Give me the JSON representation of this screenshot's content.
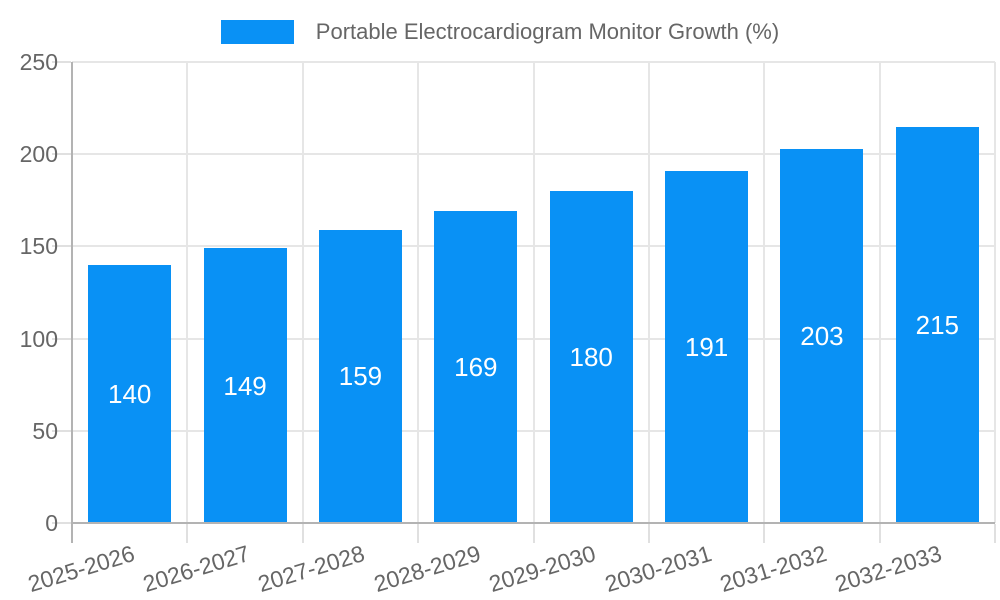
{
  "legend": {
    "label": "Portable Electrocardiogram Monitor Growth (%)",
    "swatch_color": "#0991f5"
  },
  "chart_data": {
    "type": "bar",
    "title": "Portable Electrocardiogram Monitor Growth (%)",
    "series_name": "Portable Electrocardiogram Monitor Growth (%)",
    "categories": [
      "2025-2026",
      "2026-2027",
      "2027-2028",
      "2028-2029",
      "2029-2030",
      "2030-2031",
      "2031-2032",
      "2032-2033"
    ],
    "values": [
      140,
      149,
      159,
      169,
      180,
      191,
      203,
      215
    ],
    "xlabel": "",
    "ylabel": "",
    "ylim": [
      0,
      250
    ],
    "yticks": [
      0,
      50,
      100,
      150,
      200,
      250
    ],
    "grid": true,
    "legend_position": "top",
    "x_label_rotation_deg": -17,
    "colors": {
      "bar": "#0991f5",
      "bar_label_text": "#ffffff",
      "axis_text": "#666666",
      "gridline": "#e6e6e6",
      "axis_line": "#b3b3b3",
      "tick": "#e0e0e0",
      "background": "#ffffff"
    }
  }
}
